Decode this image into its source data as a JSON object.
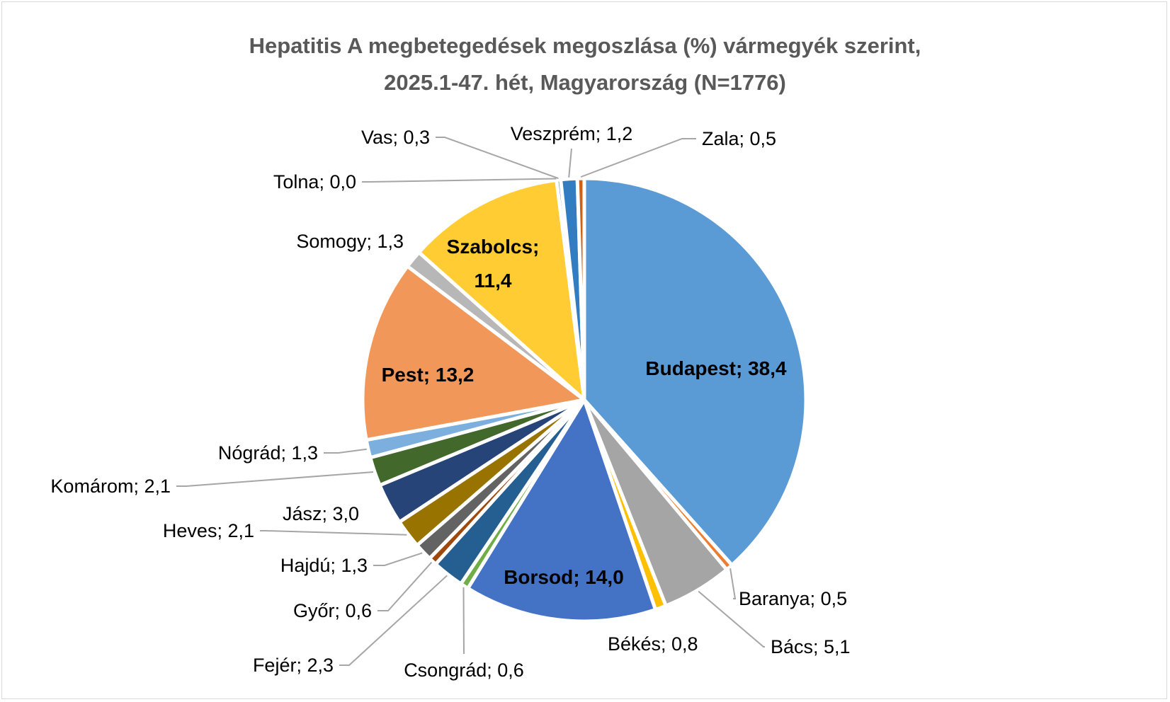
{
  "chart_data": {
    "type": "pie",
    "title": "Hepatitis A megbetegedések megoszlása (%) vármegyék szerint, 2025.1-47. hét, Magyarország (N=1776)",
    "title_lines": [
      "Hepatitis A megbetegedések megoszlása (%) vármegyék szerint,",
      "2025.1-47. hét, Magyarország (N=1776)"
    ],
    "legend": "none",
    "start": "12 o'clock",
    "direction": "clockwise",
    "slices": [
      {
        "name": "Budapest",
        "value": 38.4,
        "label": "Budapest; 38,4",
        "color": "#5b9bd5",
        "inside": true
      },
      {
        "name": "Baranya",
        "value": 0.5,
        "label": "Baranya; 0,5",
        "color": "#ed7d31"
      },
      {
        "name": "Bács",
        "value": 5.1,
        "label": "Bács; 5,1",
        "color": "#a5a5a5"
      },
      {
        "name": "Békés",
        "value": 0.8,
        "label": "Békés; 0,8",
        "color": "#ffc000"
      },
      {
        "name": "Borsod",
        "value": 14.0,
        "label": "Borsod; 14,0",
        "color": "#4472c4",
        "inside": true
      },
      {
        "name": "Csongrád",
        "value": 0.6,
        "label": "Csongrád; 0,6",
        "color": "#70ad47"
      },
      {
        "name": "Fejér",
        "value": 2.3,
        "label": "Fejér; 2,3",
        "color": "#255e91"
      },
      {
        "name": "Győr",
        "value": 0.6,
        "label": "Győr; 0,6",
        "color": "#9e480e"
      },
      {
        "name": "Hajdú",
        "value": 1.3,
        "label": "Hajdú; 1,3",
        "color": "#636363"
      },
      {
        "name": "Heves",
        "value": 2.1,
        "label": "Heves; 2,1",
        "color": "#997300"
      },
      {
        "name": "Jász",
        "value": 3.0,
        "label": "Jász; 3,0",
        "color": "#264478"
      },
      {
        "name": "Komárom",
        "value": 2.1,
        "label": "Komárom; 2,1",
        "color": "#43682b"
      },
      {
        "name": "Nógrád",
        "value": 1.3,
        "label": "Nógrád; 1,3",
        "color": "#7cafdd"
      },
      {
        "name": "Pest",
        "value": 13.2,
        "label": "Pest; 13,2",
        "color": "#f1975a",
        "inside": true
      },
      {
        "name": "Somogy",
        "value": 1.3,
        "label": "Somogy; 1,3",
        "color": "#b7b7b7"
      },
      {
        "name": "Szabolcs",
        "value": 11.4,
        "label": "Szabolcs; 11,4",
        "label_lines": [
          "Szabolcs;",
          "11,4"
        ],
        "color": "#ffcd33",
        "inside": true
      },
      {
        "name": "Tolna",
        "value": 0.0,
        "label": "Tolna; 0,0",
        "color": "#4f81bd"
      },
      {
        "name": "Vas",
        "value": 0.3,
        "label": "Vas; 0,3",
        "color": "#698ed0"
      },
      {
        "name": "Veszprém",
        "value": 1.2,
        "label": "Veszprém; 1,2",
        "color": "#327dc2"
      },
      {
        "name": "Zala",
        "value": 0.5,
        "label": "Zala; 0,5",
        "color": "#d26012"
      }
    ]
  }
}
